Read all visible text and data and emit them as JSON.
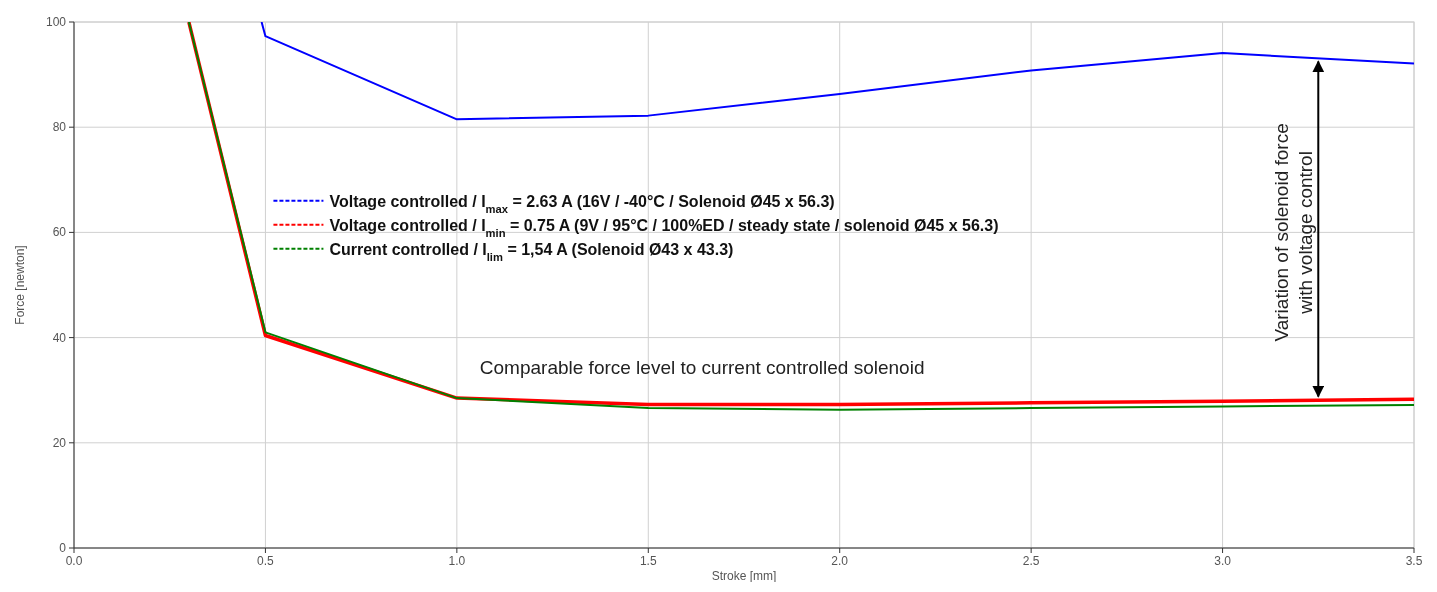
{
  "chart_data": {
    "type": "line",
    "xlabel": "Stroke [mm]",
    "ylabel": "Force [newton]",
    "xlim": [
      0,
      3.5
    ],
    "ylim": [
      0,
      100
    ],
    "xticks": [
      {
        "value": 0,
        "label": "0.0"
      },
      {
        "value": 0.5,
        "label": "0.5"
      },
      {
        "value": 1,
        "label": "1.0"
      },
      {
        "value": 1.5,
        "label": "1.5"
      },
      {
        "value": 2,
        "label": "2.0"
      },
      {
        "value": 2.5,
        "label": "2.5"
      },
      {
        "value": 3,
        "label": "3.0"
      },
      {
        "value": 3.5,
        "label": "3.5"
      }
    ],
    "yticks": [
      0,
      20,
      40,
      60,
      80,
      100
    ],
    "grid": true,
    "legend": "left",
    "line_style": "solid",
    "marker": "none",
    "series": [
      {
        "name": "Voltage controlled  / I$_{max}$ = 2.63 A (16V / -40°C / Solenoid Ø45 x 56.3)",
        "color": "#0000ff",
        "x": [
          0.49,
          0.5,
          1.0,
          1.5,
          2.0,
          2.5,
          3.0,
          3.5
        ],
        "values": [
          100,
          97.3,
          81.5,
          82.2,
          86.3,
          90.8,
          94.1,
          92.1
        ]
      },
      {
        "name": "Voltage controlled / I$_{min}$ = 0.75 A (9V / 95°C /  100%ED  / steady state / solenoid Ø45 x 56.3)",
        "color": "#ff0000",
        "x": [
          0.3,
          0.5,
          1.0,
          1.5,
          2.0,
          2.5,
          3.0,
          3.5
        ],
        "values": [
          100,
          40.4,
          28.5,
          27.3,
          27.3,
          27.6,
          27.9,
          28.3
        ]
      },
      {
        "name": "Current controlled / I$_{lim}$ = 1,54 A (Solenoid Ø43 x 43.3)",
        "color": "#008000",
        "x": [
          0.3,
          0.5,
          1.0,
          1.5,
          2.0,
          2.5,
          3.0,
          3.5
        ],
        "values": [
          100,
          41,
          28.5,
          26.6,
          26.3,
          26.6,
          26.9,
          27.2
        ]
      }
    ],
    "annotations": [
      "Comparable force level to current controlled solenoid",
      "Variation of solenoid force with voltage control"
    ]
  }
}
